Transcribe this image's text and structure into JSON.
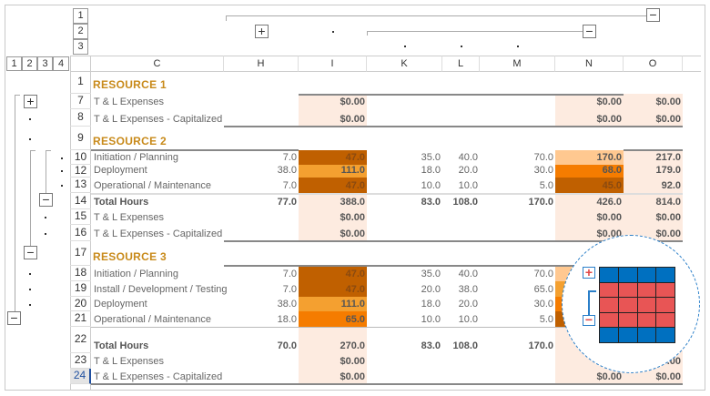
{
  "outline": {
    "row_levels": [
      "1",
      "2",
      "3"
    ],
    "col_levels": [
      "1",
      "2",
      "3",
      "4"
    ]
  },
  "columns": [
    "C",
    "H",
    "I",
    "K",
    "L",
    "M",
    "N",
    "O"
  ],
  "colors": {
    "dark": "#C06000",
    "mid": "#F4A030",
    "bright": "#F57C00",
    "peach": "#FFC890",
    "light": "#FDEBE0",
    "title": "#C88A1A",
    "overlay_blue": "#0070C0",
    "overlay_red": "#E85555"
  },
  "rows": [
    {
      "num": "1",
      "label": "RESOURCE 1",
      "type": "title",
      "cells": {},
      "fills": {}
    },
    {
      "num": "7",
      "label": "T & L Expenses",
      "type": "money",
      "cells": {
        "I": "$0.00",
        "N": "$0.00",
        "O": "$0.00"
      },
      "fills": {
        "I": "light",
        "N": "light",
        "O": "light"
      }
    },
    {
      "num": "8",
      "label": "T & L Expenses - Capitalized",
      "type": "money",
      "cells": {
        "I": "$0.00",
        "N": "$0.00",
        "O": "$0.00"
      },
      "fills": {
        "I": "light",
        "N": "light",
        "O": "light"
      }
    },
    {
      "num": "9",
      "label": "RESOURCE 2",
      "type": "title",
      "cells": {},
      "fills": {}
    },
    {
      "num": "10",
      "label": "Initiation / Planning",
      "type": "hours",
      "cells": {
        "H": "7.0",
        "I": "47.0",
        "K": "35.0",
        "L": "40.0",
        "M": "70.0",
        "N": "170.0",
        "O": "217.0"
      },
      "fills": {
        "I": "dark",
        "N": "peach",
        "O": "light"
      }
    },
    {
      "num": "12",
      "label": "Deployment",
      "type": "hours",
      "cells": {
        "H": "38.0",
        "I": "111.0",
        "K": "18.0",
        "L": "20.0",
        "M": "30.0",
        "N": "68.0",
        "O": "179.0"
      },
      "fills": {
        "I": "mid",
        "N": "bright",
        "O": "light"
      }
    },
    {
      "num": "13",
      "label": "Operational / Maintenance",
      "type": "hours",
      "cells": {
        "H": "7.0",
        "I": "47.0",
        "K": "10.0",
        "L": "10.0",
        "M": "5.0",
        "N": "45.0",
        "O": "92.0"
      },
      "fills": {
        "I": "dark",
        "N": "dark",
        "O": "light"
      }
    },
    {
      "num": "14",
      "label": "Total Hours",
      "type": "total",
      "cells": {
        "H": "77.0",
        "I": "388.0",
        "K": "83.0",
        "L": "108.0",
        "M": "170.0",
        "N": "426.0",
        "O": "814.0"
      },
      "fills": {
        "I": "light",
        "N": "light",
        "O": "light"
      }
    },
    {
      "num": "15",
      "label": "T & L Expenses",
      "type": "money",
      "cells": {
        "I": "$0.00",
        "N": "$0.00",
        "O": "$0.00"
      },
      "fills": {
        "I": "light",
        "N": "light",
        "O": "light"
      }
    },
    {
      "num": "16",
      "label": "T & L Expenses - Capitalized",
      "type": "money",
      "cells": {
        "I": "$0.00",
        "N": "$0.00",
        "O": "$0.00"
      },
      "fills": {
        "I": "light",
        "N": "light",
        "O": "light"
      }
    },
    {
      "num": "17",
      "label": "RESOURCE 3",
      "type": "title",
      "cells": {},
      "fills": {}
    },
    {
      "num": "18",
      "label": "Initiation / Planning",
      "type": "hours",
      "cells": {
        "H": "7.0",
        "I": "47.0",
        "K": "35.0",
        "L": "40.0",
        "M": "70.0"
      },
      "fills": {
        "I": "dark",
        "N": "peach",
        "O": "light"
      }
    },
    {
      "num": "19",
      "label": "Install / Development / Testing",
      "type": "hours",
      "cells": {
        "H": "7.0",
        "I": "47.0",
        "K": "20.0",
        "L": "38.0",
        "M": "65.0"
      },
      "fills": {
        "I": "dark",
        "N": "mid",
        "O": "light"
      }
    },
    {
      "num": "20",
      "label": "Deployment",
      "type": "hours",
      "cells": {
        "H": "38.0",
        "I": "111.0",
        "K": "18.0",
        "L": "20.0",
        "M": "30.0"
      },
      "fills": {
        "I": "mid",
        "N": "bright",
        "O": "light"
      }
    },
    {
      "num": "21",
      "label": "Operational / Maintenance",
      "type": "hours",
      "cells": {
        "H": "18.0",
        "I": "65.0",
        "K": "10.0",
        "L": "10.0",
        "M": "5.0"
      },
      "fills": {
        "I": "bright",
        "N": "dark",
        "O": "light"
      }
    },
    {
      "num": "22",
      "label": "Total Hours",
      "type": "total",
      "cells": {
        "H": "70.0",
        "I": "270.0",
        "K": "83.0",
        "L": "108.0",
        "M": "170.0"
      },
      "fills": {
        "I": "light",
        "N": "light",
        "O": "light"
      }
    },
    {
      "num": "23",
      "label": "T & L Expenses",
      "type": "money",
      "cells": {
        "I": "$0.00",
        "O": "$0.00"
      },
      "fills": {
        "I": "light",
        "N": "light",
        "O": "light"
      }
    },
    {
      "num": "24",
      "label": "T & L Expenses - Capitalized",
      "type": "money",
      "cells": {
        "I": "$0.00",
        "N": "$0.00",
        "O": "$0.00"
      },
      "fills": {
        "I": "light",
        "N": "light",
        "O": "light"
      },
      "selected": true
    }
  ]
}
